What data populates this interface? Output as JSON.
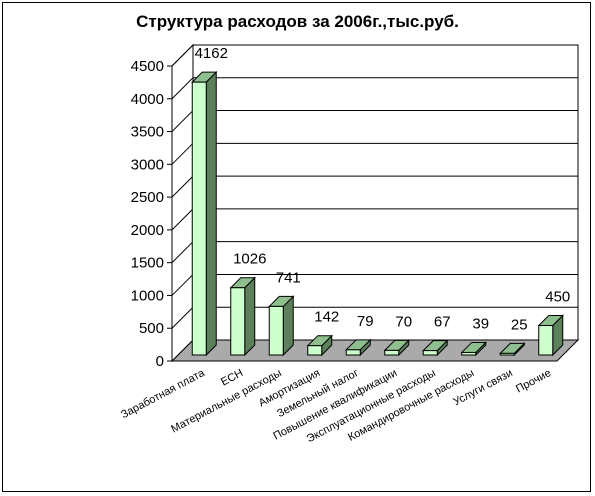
{
  "chart_data": {
    "type": "bar",
    "title": "Структура расходов за 2006г.,тыс.руб.",
    "categories": [
      "Заработная плата",
      "ЕСН",
      "Материальные расходы",
      "Амортизация",
      "Земельный налог",
      "Повышение квалификации",
      "Эксплуатационные расходы",
      "Командировочные расходы",
      "Услуги связи",
      "Прочие"
    ],
    "values": [
      4162,
      1026,
      741,
      142,
      79,
      70,
      67,
      39,
      25,
      450
    ],
    "value_labels": [
      "4162",
      "1026",
      "741",
      "142",
      "79",
      "70",
      "67",
      "39",
      "25",
      "450"
    ],
    "ylim": [
      0,
      4500
    ],
    "yticks": [
      "0",
      "500",
      "1000",
      "1500",
      "2000",
      "2500",
      "3000",
      "3500",
      "4000",
      "4500"
    ],
    "grid": true,
    "style": "3d",
    "colors": {
      "bar_front": "#ccffcc",
      "bar_side": "#5c7f5c",
      "bar_top": "#8fbf8f",
      "floor": "#aaaaaa"
    }
  }
}
